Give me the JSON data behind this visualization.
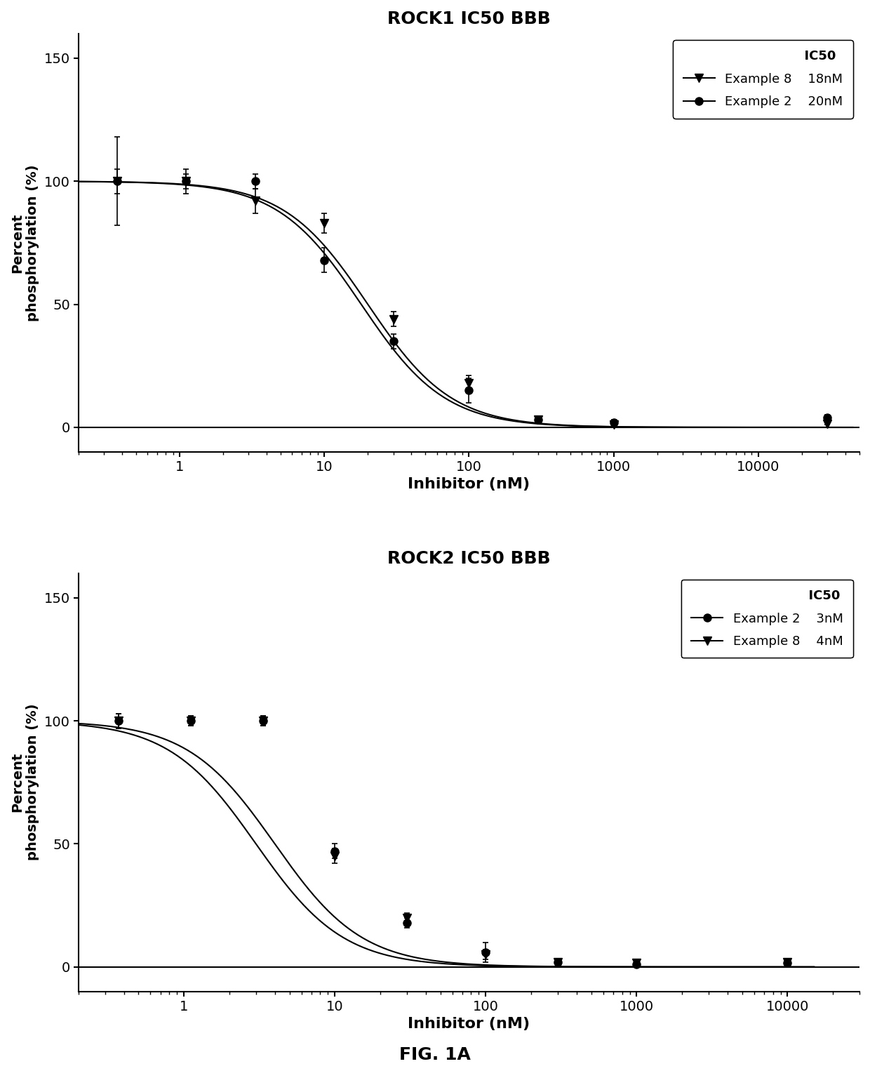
{
  "plot1": {
    "title": "ROCK1 IC50 BBB",
    "series": [
      {
        "label": "Example 8",
        "ic50_label": "18nM",
        "ic50": 18,
        "marker": "v",
        "x_data": [
          0.37,
          1.11,
          3.33,
          10.0,
          30.0,
          100.0,
          300.0,
          1000.0,
          30000.0
        ],
        "y_data": [
          100.0,
          100.0,
          92.0,
          83.0,
          44.0,
          18.0,
          3.0,
          1.0,
          1.5
        ],
        "y_err": [
          18.0,
          5.0,
          5.0,
          4.0,
          3.0,
          3.0,
          1.0,
          1.0,
          0.5
        ]
      },
      {
        "label": "Example 2",
        "ic50_label": "20nM",
        "ic50": 20,
        "marker": "o",
        "x_data": [
          0.37,
          1.11,
          3.33,
          10.0,
          30.0,
          100.0,
          300.0,
          1000.0,
          30000.0
        ],
        "y_data": [
          100.0,
          100.0,
          100.0,
          68.0,
          35.0,
          15.0,
          3.0,
          2.0,
          4.0
        ],
        "y_err": [
          5.0,
          3.0,
          3.0,
          5.0,
          3.0,
          5.0,
          1.0,
          1.0,
          1.0
        ]
      }
    ],
    "xlim": [
      0.2,
      50000
    ],
    "ylim": [
      -10,
      160
    ],
    "yticks": [
      0,
      50,
      100,
      150
    ],
    "xlabel": "Inhibitor (nM)",
    "ylabel": "Percent\nphosphorylation (%)",
    "legend_order": [
      0,
      1
    ],
    "legend_loc": "upper right"
  },
  "plot2": {
    "title": "ROCK2 IC50 BBB",
    "series": [
      {
        "label": "Example 2",
        "ic50_label": "3nM",
        "ic50": 3,
        "marker": "o",
        "x_data": [
          0.37,
          1.11,
          3.33,
          10.0,
          30.0,
          100.0,
          300.0,
          1000.0,
          10000.0
        ],
        "y_data": [
          100.0,
          100.0,
          100.0,
          47.0,
          18.0,
          6.0,
          2.0,
          1.0,
          1.5
        ],
        "y_err": [
          3.0,
          2.0,
          2.0,
          3.0,
          2.0,
          4.0,
          1.0,
          1.0,
          0.5
        ]
      },
      {
        "label": "Example 8",
        "ic50_label": "4nM",
        "ic50": 4,
        "marker": "v",
        "x_data": [
          0.37,
          1.11,
          3.33,
          10.0,
          30.0,
          100.0,
          300.0,
          1000.0,
          10000.0
        ],
        "y_data": [
          100.0,
          100.0,
          100.0,
          45.0,
          20.0,
          5.0,
          2.0,
          1.5,
          2.0
        ],
        "y_err": [
          3.0,
          2.0,
          2.0,
          3.0,
          2.0,
          2.0,
          1.0,
          1.0,
          0.5
        ]
      }
    ],
    "xlim": [
      0.2,
      30000
    ],
    "ylim": [
      -10,
      160
    ],
    "yticks": [
      0,
      50,
      100,
      150
    ],
    "xlabel": "Inhibitor (nM)",
    "ylabel": "Percent\nphosphorylation (%)",
    "legend_order": [
      0,
      1
    ],
    "legend_loc": "upper right"
  },
  "figure_label": "FIG. 1A",
  "background_color": "#ffffff",
  "line_color": "#000000",
  "marker_color": "#000000",
  "marker_size": 8,
  "line_width": 1.5
}
